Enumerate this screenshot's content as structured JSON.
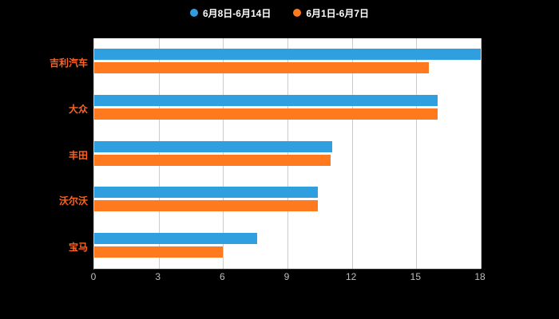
{
  "legend": {
    "items": [
      {
        "label": "6月8日-6月14日",
        "color": "#2f9fe0"
      },
      {
        "label": "6月1日-6月7日",
        "color": "#ff7a1f"
      }
    ]
  },
  "chart_data": {
    "type": "bar",
    "orientation": "horizontal",
    "title": "",
    "xlabel": "",
    "ylabel": "",
    "categories": [
      "吉利汽车",
      "大众",
      "丰田",
      "沃尔沃",
      "宝马"
    ],
    "series": [
      {
        "name": "6月8日-6月14日",
        "color": "#2f9fe0",
        "values": [
          18,
          16,
          11.1,
          10.4,
          7.6
        ]
      },
      {
        "name": "6月1日-6月7日",
        "color": "#ff7a1f",
        "values": [
          15.6,
          16,
          11,
          10.4,
          6
        ]
      }
    ],
    "xlim": [
      0,
      18
    ],
    "x_ticks": [
      0,
      3,
      6,
      9,
      12,
      15,
      18
    ],
    "grid": true,
    "legend_position": "top"
  },
  "style": {
    "page_background": "#000000",
    "plot_background": "#ffffff",
    "grid_color": "#cccccc",
    "axis_color": "#333333",
    "tick_label_color": "#bfbfbf",
    "category_label_color": "#ff6320"
  }
}
